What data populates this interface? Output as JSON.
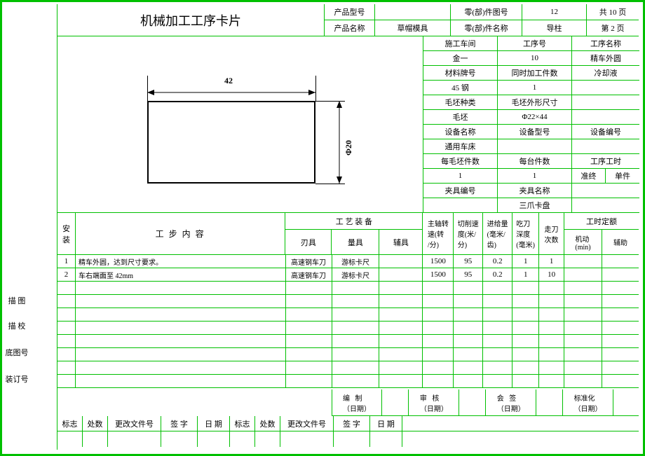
{
  "border_color": "#00c000",
  "title": "机械加工工序卡片",
  "header": {
    "r1": {
      "product_model_label": "产品型号",
      "product_model": "",
      "part_drawing_no_label": "零(部)件图号",
      "part_drawing_no": "12",
      "total_pages": "共 10 页"
    },
    "r2": {
      "product_name_label": "产品名称",
      "product_name": "草帽模具",
      "part_name_label": "零(部)件名称",
      "part_name": "导柱",
      "page": "第 2 页"
    }
  },
  "info_rows": [
    {
      "c1": "施工车间",
      "c2": "工序号",
      "c3": "工序名称"
    },
    {
      "c1": "金一",
      "c2": "10",
      "c3": "精车外圆"
    },
    {
      "c1": "材料牌号",
      "c2": "同时加工件数",
      "c3": "冷却液"
    },
    {
      "c1": "45 钢",
      "c2": "1",
      "c3": ""
    },
    {
      "c1": "毛坯种类",
      "c2": "毛坯外形尺寸",
      "c3": ""
    },
    {
      "c1": "毛坯",
      "c2": "Φ22×44",
      "c3": ""
    },
    {
      "c1": "设备名称",
      "c2": "设备型号",
      "c3": "设备编号"
    },
    {
      "c1": "通用车床",
      "c2": "",
      "c3": ""
    },
    {
      "c1": "每毛坯件数",
      "c2": "每台件数",
      "c3": "工序工时"
    },
    {
      "c1": "1",
      "c2": "1"
    },
    {
      "c1": "夹具编号",
      "c2": "夹具名称",
      "c3": ""
    },
    {
      "c1": "",
      "c2": "三爪卡盘",
      "c3": ""
    }
  ],
  "row9_sub": {
    "c3a": "准终",
    "c3b": "单件"
  },
  "drawing": {
    "width_label": "42",
    "diameter_label": "Φ20"
  },
  "cols": {
    "install": "安\n装",
    "content": "工   步   内   容",
    "tooling": "工 艺 装 备",
    "cutter": "刃具",
    "gauge": "量具",
    "aux": "辅具",
    "rpm": "主轴转\n速(转\n/分)",
    "vc": "切削速\n度(米/\n分)",
    "feed": "进给量\n(毫米/\n齿)",
    "ap": "吃刀\n深度\n(毫米)",
    "pass": "走刀\n次数",
    "quota": "工时定额",
    "machine": "机动\n(min)",
    "aux2": "辅助"
  },
  "steps": [
    {
      "no": "1",
      "content": "精车外圆，达到尺寸要求。",
      "cutter": "高速钢车刀",
      "gauge": "游标卡尺",
      "aux": "",
      "rpm": "1500",
      "vc": "95",
      "feed": "0.2",
      "ap": "1",
      "pass": "1",
      "machine": "",
      "aux2": ""
    },
    {
      "no": "2",
      "content": "车右端面至 42mm",
      "cutter": "高速钢车刀",
      "gauge": "游标卡尺",
      "aux": "",
      "rpm": "1500",
      "vc": "95",
      "feed": "0.2",
      "ap": "1",
      "pass": "10",
      "machine": "",
      "aux2": ""
    }
  ],
  "side_labels": [
    "描 图",
    "描 校",
    "底图号",
    "装订号"
  ],
  "footer_changes": {
    "mark": "标志",
    "count": "处数",
    "file": "更改文件号",
    "sign": "签   字",
    "date": "日   期"
  },
  "footer_sign": {
    "compile": "编   制\n（日期）",
    "check": "审   核\n（日期）",
    "countersign": "会   签\n（日期）",
    "standard": "标准化\n（日期）"
  }
}
